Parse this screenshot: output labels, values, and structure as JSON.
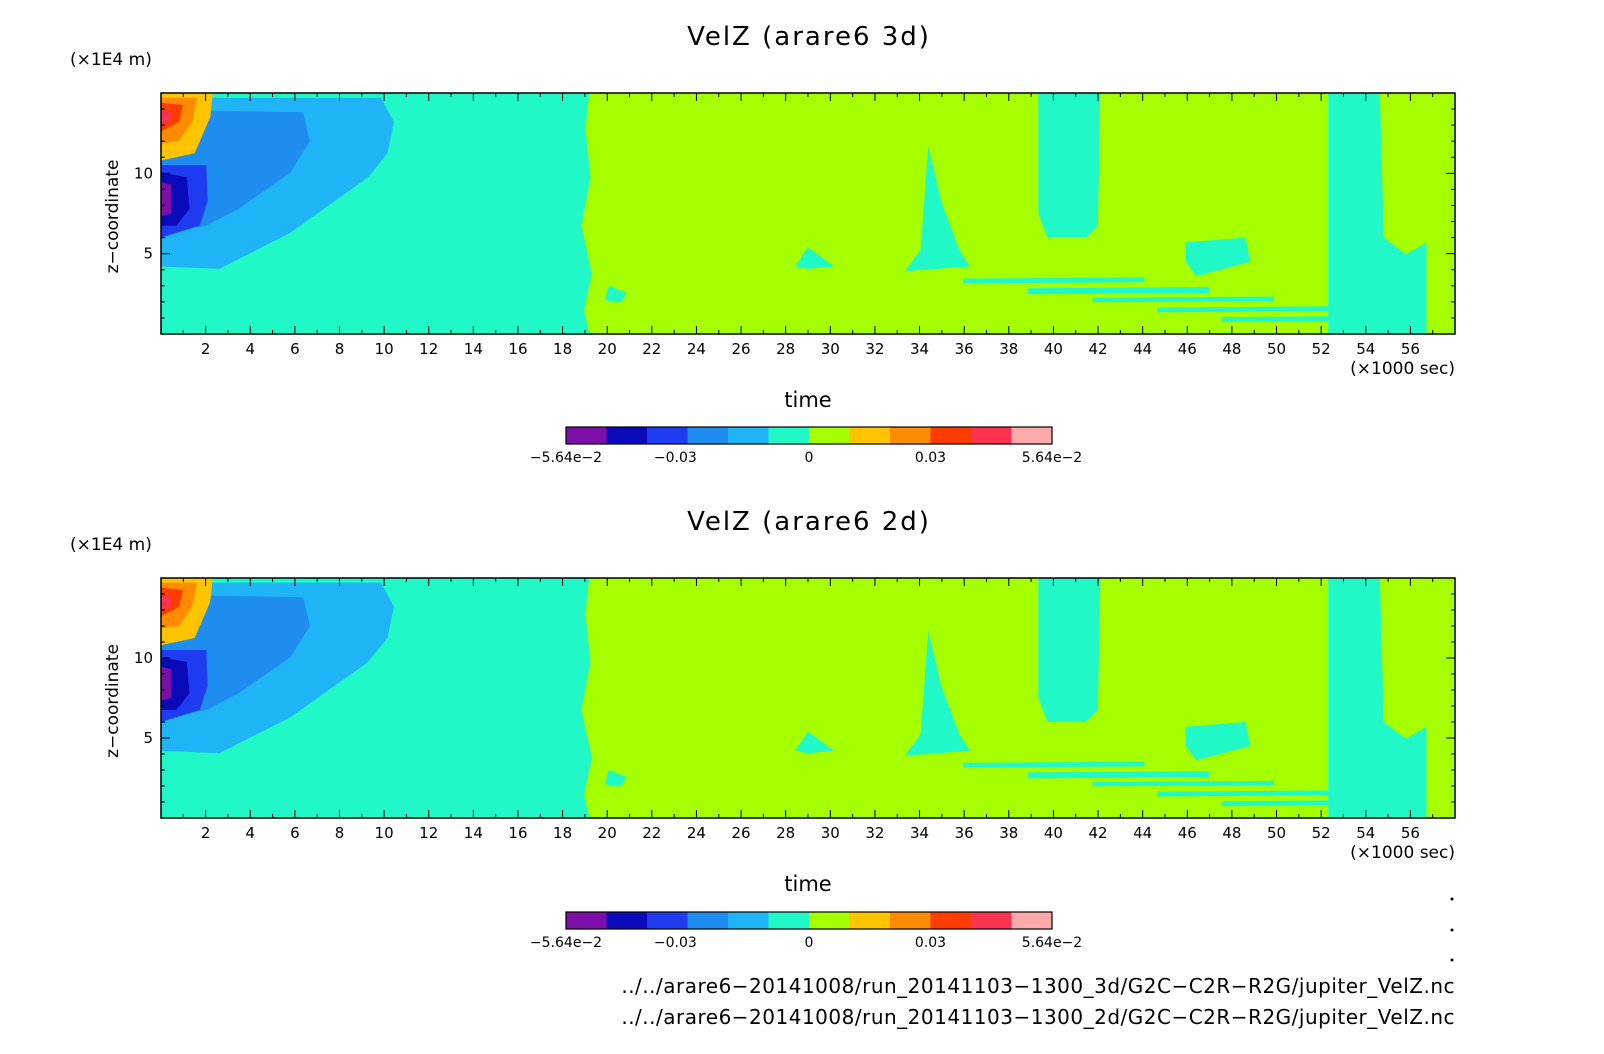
{
  "chart_data": [
    {
      "type": "heatmap",
      "title": "VelZ (arare6 3d)",
      "xlabel": "time",
      "x_unit": "(×1000 sec)",
      "ylabel": "z−coordinate",
      "y_unit": "(×1E4 m)",
      "xlim": [
        0,
        58
      ],
      "ylim": [
        0,
        15
      ],
      "x_ticks": [
        2,
        4,
        6,
        8,
        10,
        12,
        14,
        16,
        18,
        20,
        22,
        24,
        26,
        28,
        30,
        32,
        34,
        36,
        38,
        40,
        42,
        44,
        46,
        48,
        50,
        52,
        54,
        56
      ],
      "y_ticks": [
        5,
        10
      ],
      "colorbar": {
        "levels": [
          "−5.64e−2",
          "−0.03",
          "0",
          "0.03",
          "5.64e−2"
        ],
        "colors": [
          "#7b0fa8",
          "#0a0ab8",
          "#1f3cf0",
          "#1f8cf0",
          "#1fb4f5",
          "#20f8c8",
          "#a6ff00",
          "#ffc400",
          "#ff8c00",
          "#ff3c00",
          "#ff3250",
          "#ffaaaa"
        ]
      }
    },
    {
      "type": "heatmap",
      "title": "VelZ (arare6 2d)",
      "xlabel": "time",
      "x_unit": "(×1000 sec)",
      "ylabel": "z−coordinate",
      "y_unit": "(×1E4 m)",
      "xlim": [
        0,
        58
      ],
      "ylim": [
        0,
        15
      ],
      "x_ticks": [
        2,
        4,
        6,
        8,
        10,
        12,
        14,
        16,
        18,
        20,
        22,
        24,
        26,
        28,
        30,
        32,
        34,
        36,
        38,
        40,
        42,
        44,
        46,
        48,
        50,
        52,
        54,
        56
      ],
      "y_ticks": [
        5,
        10
      ],
      "colorbar": {
        "levels": [
          "−5.64e−2",
          "−0.03",
          "0",
          "0.03",
          "5.64e−2"
        ],
        "colors": [
          "#7b0fa8",
          "#0a0ab8",
          "#1f3cf0",
          "#1f8cf0",
          "#1fb4f5",
          "#20f8c8",
          "#a6ff00",
          "#ffc400",
          "#ff8c00",
          "#ff3c00",
          "#ff3250",
          "#ffaaaa"
        ]
      }
    }
  ],
  "files": [
    "../../arare6−20141008/run_20141103−1300_3d/G2C−C2R−R2G/jupiter_VelZ.nc",
    "../../arare6−20141008/run_20141103−1300_2d/G2C−C2R−R2G/jupiter_VelZ.nc"
  ]
}
